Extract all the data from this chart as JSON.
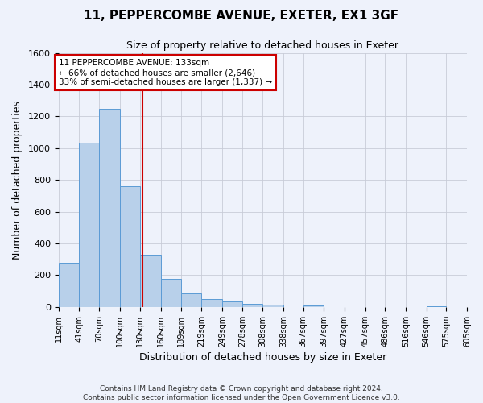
{
  "title_line1": "11, PEPPERCOMBE AVENUE, EXETER, EX1 3GF",
  "title_line2": "Size of property relative to detached houses in Exeter",
  "xlabel": "Distribution of detached houses by size in Exeter",
  "ylabel": "Number of detached properties",
  "bin_edges": [
    11,
    41,
    70,
    100,
    130,
    160,
    189,
    219,
    249,
    278,
    308,
    338,
    367,
    397,
    427,
    457,
    486,
    516,
    546,
    575,
    605
  ],
  "bar_heights": [
    280,
    1035,
    1250,
    760,
    330,
    175,
    85,
    50,
    35,
    20,
    15,
    0,
    10,
    0,
    0,
    0,
    0,
    0,
    5,
    0
  ],
  "bar_color": "#b8d0ea",
  "bar_edge_color": "#5b9bd5",
  "property_value": 133,
  "vline_color": "#cc0000",
  "annotation_text": "11 PEPPERCOMBE AVENUE: 133sqm\n← 66% of detached houses are smaller (2,646)\n33% of semi-detached houses are larger (1,337) →",
  "annotation_box_edge": "#cc0000",
  "annotation_box_bg": "#ffffff",
  "ylim": [
    0,
    1600
  ],
  "yticks": [
    0,
    200,
    400,
    600,
    800,
    1000,
    1200,
    1400,
    1600
  ],
  "tick_labels": [
    "11sqm",
    "41sqm",
    "70sqm",
    "100sqm",
    "130sqm",
    "160sqm",
    "189sqm",
    "219sqm",
    "249sqm",
    "278sqm",
    "308sqm",
    "338sqm",
    "367sqm",
    "397sqm",
    "427sqm",
    "457sqm",
    "486sqm",
    "516sqm",
    "546sqm",
    "575sqm",
    "605sqm"
  ],
  "footer_line1": "Contains HM Land Registry data © Crown copyright and database right 2024.",
  "footer_line2": "Contains public sector information licensed under the Open Government Licence v3.0.",
  "background_color": "#eef2fb",
  "grid_color": "#c8ccd8",
  "title1_fontsize": 11,
  "title2_fontsize": 9,
  "xlabel_fontsize": 9,
  "ylabel_fontsize": 9,
  "xtick_fontsize": 7,
  "ytick_fontsize": 8,
  "footer_fontsize": 6.5
}
